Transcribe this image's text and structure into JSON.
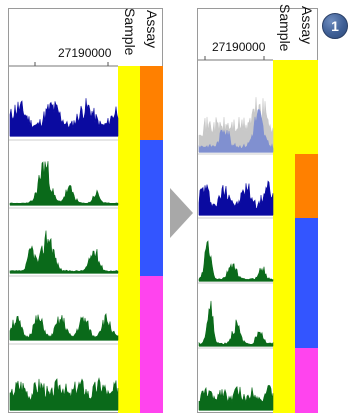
{
  "left_panel": {
    "axis_label": "27190000",
    "sample_label": "Sample",
    "assay_label": "Assay"
  },
  "right_panel": {
    "axis_label": "27190000",
    "sample_label": "Sample",
    "assay_label": "Assay"
  },
  "badge": {
    "label": "1"
  },
  "colors": {
    "sample": "#ffff00",
    "assay_orange": "#ff8000",
    "assay_blue": "#3355ff",
    "assay_magenta": "#ff44ee",
    "track_blue": "#0a0aa0",
    "track_green": "#0a6a1a",
    "overlay_gray": "#c8c8c8",
    "overlay_blue": "#8090d0",
    "arrow": "#a8a8a8"
  }
}
